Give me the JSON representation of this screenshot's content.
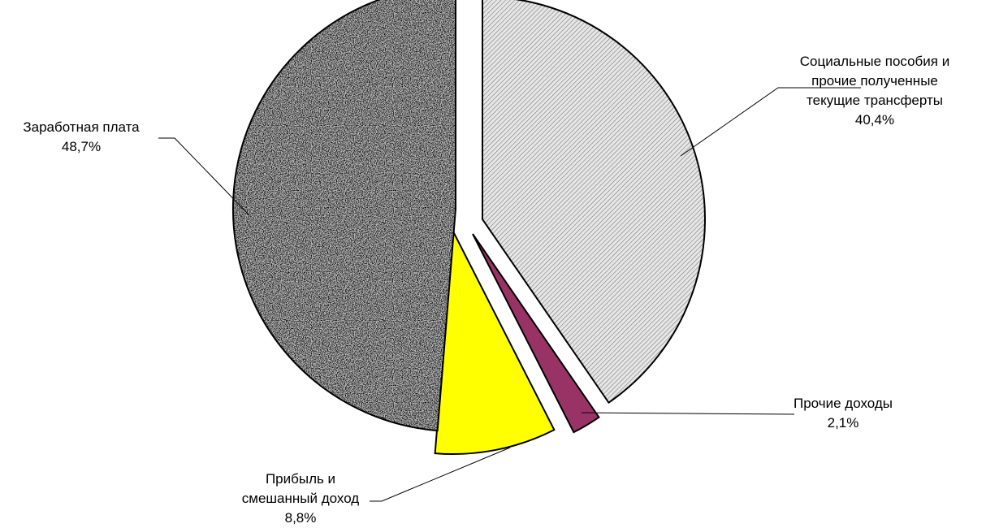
{
  "chart_data": {
    "type": "pie",
    "title": "",
    "slices": [
      {
        "lines": [
          "Социальные пособия и",
          "прочие полученные",
          "текущие трансферты"
        ],
        "value": 40.4,
        "value_label": "40,4%",
        "color": "#d9d9d9",
        "pattern": "diagonal-hatch"
      },
      {
        "lines": [
          "Прочие доходы"
        ],
        "value": 2.1,
        "value_label": "2,1%",
        "color": "#993366",
        "pattern": "solid"
      },
      {
        "lines": [
          "Прибыль и",
          "смешанный доход"
        ],
        "value": 8.8,
        "value_label": "8,8%",
        "color": "#ffff00",
        "pattern": "solid"
      },
      {
        "lines": [
          "Заработная плата"
        ],
        "value": 48.7,
        "value_label": "48,7%",
        "color": "#8c8c8c",
        "pattern": "granite"
      }
    ],
    "start_angle": "12 o'clock",
    "direction": "clockwise",
    "exploded": true,
    "legend": "none"
  }
}
